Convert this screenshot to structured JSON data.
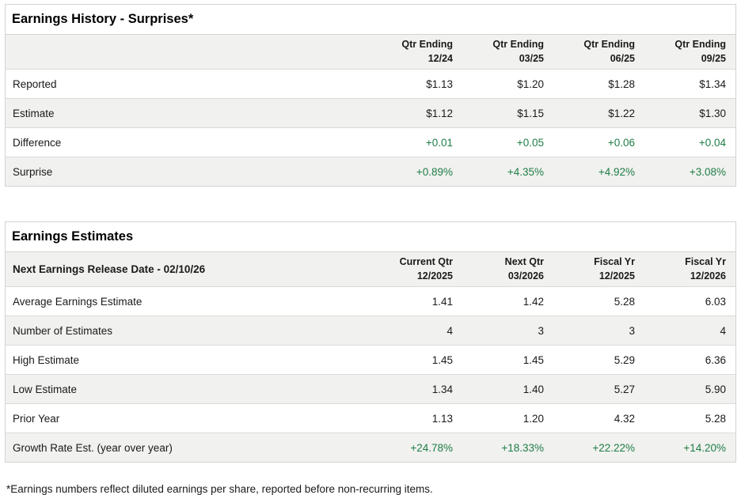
{
  "colors": {
    "green": "#1e7d46",
    "stripe": "#f1f1ef",
    "border": "#d3d3d3",
    "text": "#1a1a1a"
  },
  "surprises": {
    "title": "Earnings History - Surprises*",
    "columns": [
      {
        "line1": "Qtr Ending",
        "line2": "12/24"
      },
      {
        "line1": "Qtr Ending",
        "line2": "03/25"
      },
      {
        "line1": "Qtr Ending",
        "line2": "06/25"
      },
      {
        "line1": "Qtr Ending",
        "line2": "09/25"
      }
    ],
    "rows": [
      {
        "label": "Reported",
        "values": [
          "$1.13",
          "$1.20",
          "$1.28",
          "$1.34"
        ]
      },
      {
        "label": "Estimate",
        "values": [
          "$1.12",
          "$1.15",
          "$1.22",
          "$1.30"
        ]
      },
      {
        "label": "Difference",
        "values": [
          "+0.01",
          "+0.05",
          "+0.06",
          "+0.04"
        ]
      },
      {
        "label": "Surprise",
        "values": [
          "+0.89%",
          "+4.35%",
          "+4.92%",
          "+3.08%"
        ]
      }
    ]
  },
  "estimates": {
    "title": "Earnings Estimates",
    "header_label": "Next Earnings Release Date - 02/10/26",
    "columns": [
      {
        "line1": "Current Qtr",
        "line2": "12/2025"
      },
      {
        "line1": "Next Qtr",
        "line2": "03/2026"
      },
      {
        "line1": "Fiscal Yr",
        "line2": "12/2025"
      },
      {
        "line1": "Fiscal Yr",
        "line2": "12/2026"
      }
    ],
    "rows": [
      {
        "label": "Average Earnings Estimate",
        "values": [
          "1.41",
          "1.42",
          "5.28",
          "6.03"
        ]
      },
      {
        "label": "Number of Estimates",
        "values": [
          "4",
          "3",
          "3",
          "4"
        ]
      },
      {
        "label": "High Estimate",
        "values": [
          "1.45",
          "1.45",
          "5.29",
          "6.36"
        ]
      },
      {
        "label": "Low Estimate",
        "values": [
          "1.34",
          "1.40",
          "5.27",
          "5.90"
        ]
      },
      {
        "label": "Prior Year",
        "values": [
          "1.13",
          "1.20",
          "4.32",
          "5.28"
        ]
      },
      {
        "label": "Growth Rate Est. (year over year)",
        "values": [
          "+24.78%",
          "+18.33%",
          "+22.22%",
          "+14.20%"
        ]
      }
    ]
  },
  "footnote": "*Earnings numbers reflect diluted earnings per share, reported before non-recurring items."
}
